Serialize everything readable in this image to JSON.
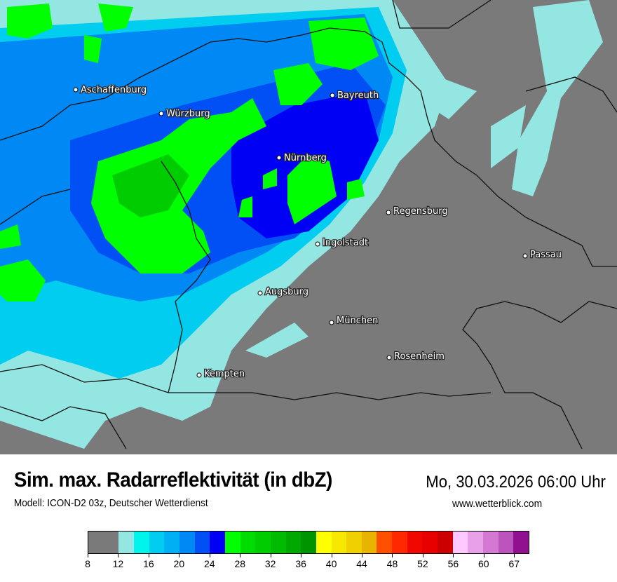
{
  "title": "Sim. max. Radarreflektivität (in dbZ)",
  "subtitle": "Modell: ICON-D2 03z, Deutscher Wetterdienst",
  "datetime": "Mo, 30.03.2026 06:00 Uhr",
  "source": "www.wetterblick.com",
  "map": {
    "background_color": "#7a7a7a",
    "cities": [
      {
        "name": "Aschaffenburg"
      },
      {
        "name": "Würzburg"
      },
      {
        "name": "Bayreuth"
      },
      {
        "name": "Nürnberg"
      },
      {
        "name": "Regensburg"
      },
      {
        "name": "Ingolstadt"
      },
      {
        "name": "Passau"
      },
      {
        "name": "Augsburg"
      },
      {
        "name": "München"
      },
      {
        "name": "Rosenheim"
      },
      {
        "name": "Kempten"
      }
    ]
  },
  "legend": {
    "unit": "dbZ",
    "colors": [
      "#7a7a7a",
      "#7a7a7a",
      "#93e6e1",
      "#00f4ec",
      "#00cdf0",
      "#00b0f4",
      "#0088f4",
      "#0050f6",
      "#0000f4",
      "#00ff00",
      "#00dc00",
      "#00cd00",
      "#00bc00",
      "#00a800",
      "#009400",
      "#ffff00",
      "#f6e800",
      "#f0d000",
      "#e8b400",
      "#ff5000",
      "#ff2800",
      "#f00800",
      "#e80000",
      "#cc0000",
      "#ffc8ff",
      "#e8a0e8",
      "#d478d4",
      "#bb55bb",
      "#901090"
    ],
    "ticks": [
      "8",
      "12",
      "16",
      "20",
      "24",
      "28",
      "32",
      "36",
      "40",
      "44",
      "48",
      "52",
      "56",
      "60",
      "67"
    ]
  }
}
